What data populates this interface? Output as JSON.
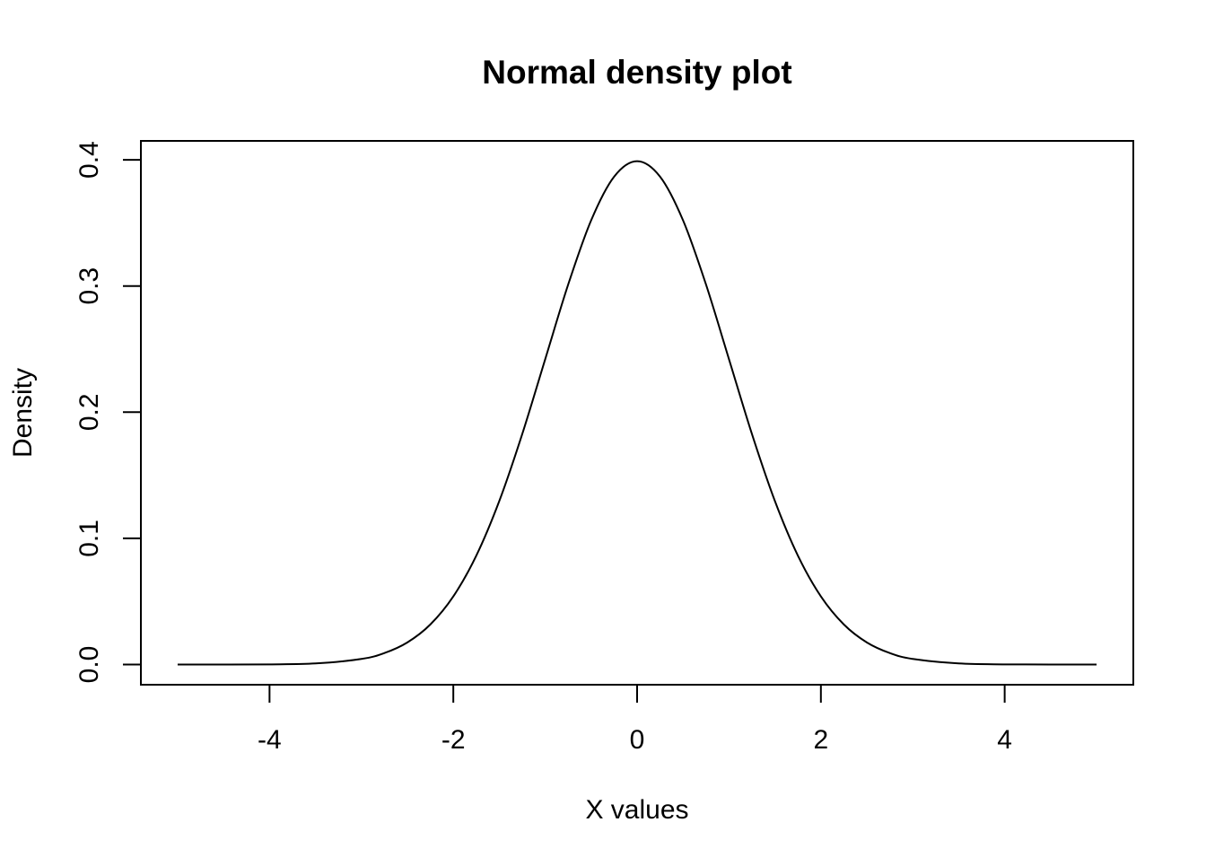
{
  "chart_data": {
    "type": "line",
    "title": "Normal density plot",
    "xlabel": "X values",
    "ylabel": "Density",
    "xlim": [
      -5.4,
      5.4
    ],
    "ylim": [
      -0.016,
      0.415
    ],
    "x_ticks": [
      -4,
      -2,
      0,
      2,
      4
    ],
    "x_tick_labels": [
      "-4",
      "-2",
      "0",
      "2",
      "4"
    ],
    "y_ticks": [
      0.0,
      0.1,
      0.2,
      0.3,
      0.4
    ],
    "y_tick_labels": [
      "0.0",
      "0.1",
      "0.2",
      "0.3",
      "0.4"
    ],
    "grid": false,
    "legend": "none",
    "series": [
      {
        "color": "#000000",
        "x": [
          -5,
          -4.5,
          -4,
          -3.5,
          -3,
          -2.75,
          -2.5,
          -2.25,
          -2,
          -1.75,
          -1.5,
          -1.25,
          -1,
          -0.75,
          -0.5,
          -0.25,
          0,
          0.25,
          0.5,
          0.75,
          1,
          1.25,
          1.5,
          1.75,
          2,
          2.25,
          2.5,
          2.75,
          3,
          3.5,
          4,
          4.5,
          5
        ],
        "y": [
          1.5e-06,
          1.6e-05,
          0.000134,
          0.000873,
          0.004432,
          0.009094,
          0.017528,
          0.03174,
          0.053991,
          0.086277,
          0.129518,
          0.182649,
          0.241971,
          0.301137,
          0.352065,
          0.386668,
          0.398942,
          0.386668,
          0.352065,
          0.301137,
          0.241971,
          0.182649,
          0.129518,
          0.086277,
          0.053991,
          0.03174,
          0.017528,
          0.009094,
          0.004432,
          0.000873,
          0.000134,
          1.6e-05,
          1.5e-06
        ]
      }
    ]
  }
}
